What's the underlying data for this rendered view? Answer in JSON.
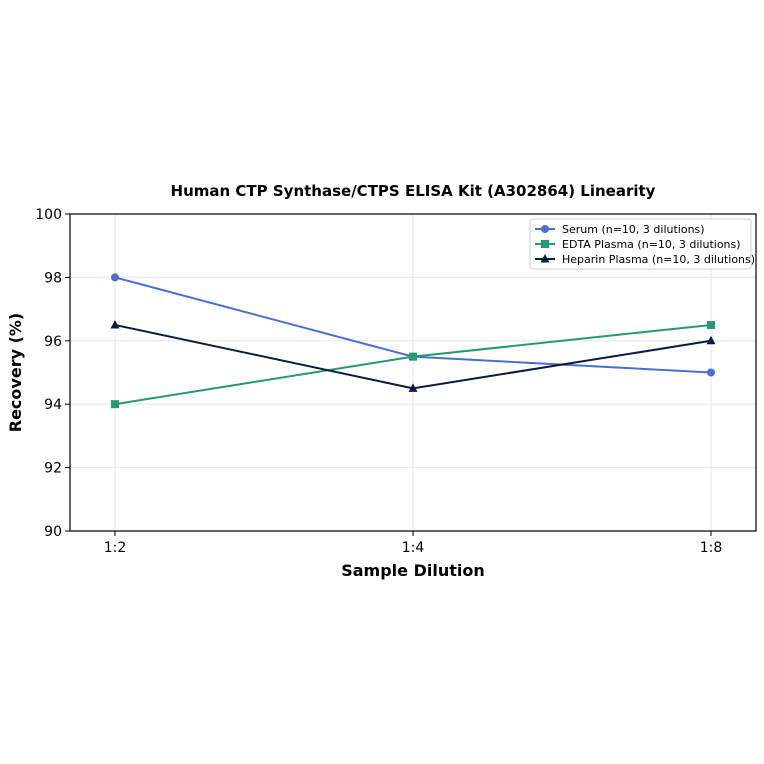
{
  "chart_data": {
    "type": "line",
    "title": "Human CTP Synthase/CTPS ELISA Kit (A302864) Linearity",
    "xlabel": "Sample Dilution",
    "ylabel": "Recovery (%)",
    "categories": [
      "1:2",
      "1:4",
      "1:8"
    ],
    "ylim": [
      90,
      100
    ],
    "yticks": [
      90,
      92,
      94,
      96,
      98,
      100
    ],
    "grid": true,
    "legend_position": "top-right",
    "series": [
      {
        "name": "Serum (n=10, 3 dilutions)",
        "values": [
          98.0,
          95.5,
          95.0
        ],
        "color": "#4a6fd4",
        "marker": "circle"
      },
      {
        "name": "EDTA Plasma (n=10, 3 dilutions)",
        "values": [
          94.0,
          95.5,
          96.5
        ],
        "color": "#259a72",
        "marker": "square"
      },
      {
        "name": "Heparin Plasma (n=10, 3 dilutions)",
        "values": [
          96.5,
          94.5,
          96.0
        ],
        "color": "#0d1b42",
        "marker": "triangle"
      }
    ]
  }
}
